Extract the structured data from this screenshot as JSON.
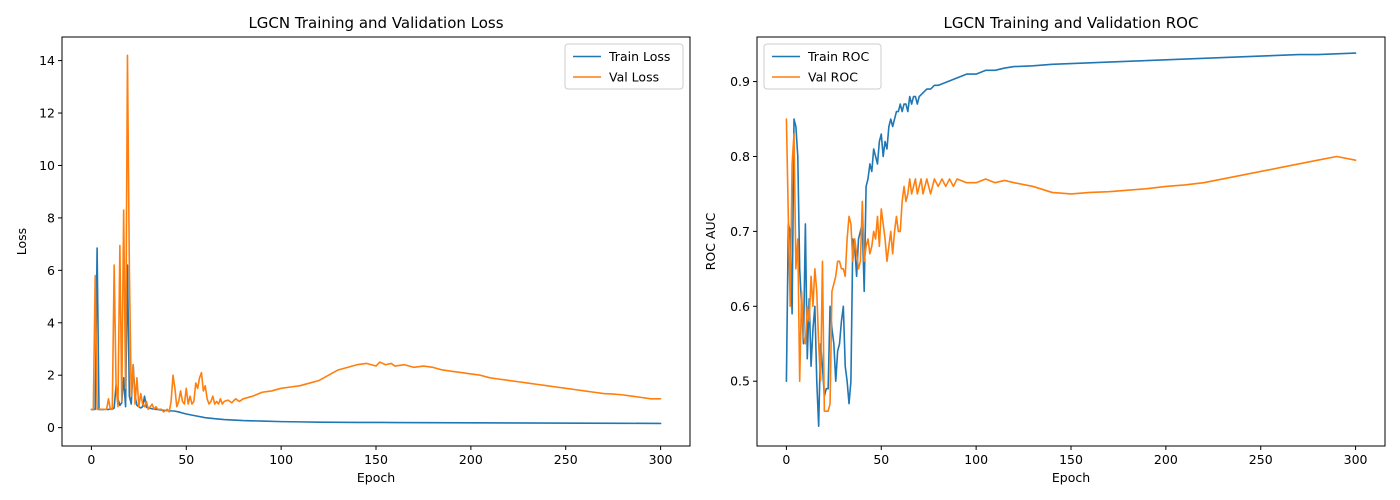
{
  "chart_data": [
    {
      "type": "line",
      "title": "LGCN Training and Validation Loss",
      "xlabel": "Epoch",
      "ylabel": "Loss",
      "xlim": [
        -15.5,
        315.5
      ],
      "ylim": [
        -0.7,
        14.9
      ],
      "xticks": [
        0,
        50,
        100,
        150,
        200,
        250,
        300
      ],
      "yticks": [
        0,
        2,
        4,
        6,
        8,
        10,
        12,
        14
      ],
      "legend_position": "upper right",
      "grid": false,
      "series": [
        {
          "name": "Train Loss",
          "color": "#1f77b4",
          "x": [
            0,
            1,
            2,
            3,
            4,
            5,
            6,
            7,
            8,
            9,
            10,
            11,
            12,
            13,
            14,
            15,
            16,
            17,
            18,
            19,
            20,
            21,
            22,
            23,
            24,
            25,
            26,
            27,
            28,
            29,
            30,
            32,
            34,
            36,
            38,
            40,
            42,
            44,
            46,
            48,
            50,
            55,
            60,
            65,
            70,
            75,
            80,
            90,
            100,
            110,
            120,
            140,
            160,
            180,
            200,
            220,
            240,
            260,
            280,
            300
          ],
          "y": [
            0.69,
            0.69,
            0.7,
            6.85,
            0.69,
            0.7,
            0.69,
            0.7,
            0.7,
            0.69,
            0.72,
            0.7,
            0.75,
            1.62,
            1.1,
            0.85,
            0.95,
            1.9,
            0.8,
            6.2,
            1.2,
            0.9,
            2.4,
            1.2,
            0.85,
            0.8,
            0.75,
            0.8,
            1.2,
            0.78,
            0.75,
            0.72,
            0.7,
            0.68,
            0.66,
            0.65,
            0.64,
            0.63,
            0.6,
            0.56,
            0.52,
            0.45,
            0.38,
            0.34,
            0.31,
            0.29,
            0.27,
            0.25,
            0.23,
            0.22,
            0.21,
            0.2,
            0.195,
            0.19,
            0.185,
            0.18,
            0.175,
            0.17,
            0.165,
            0.16
          ]
        },
        {
          "name": "Val Loss",
          "color": "#ff7f0e",
          "x": [
            0,
            1,
            2,
            3,
            4,
            5,
            6,
            7,
            8,
            9,
            10,
            11,
            12,
            13,
            14,
            15,
            16,
            17,
            18,
            19,
            20,
            21,
            22,
            23,
            24,
            25,
            26,
            27,
            28,
            29,
            30,
            31,
            32,
            33,
            34,
            35,
            36,
            37,
            38,
            39,
            40,
            41,
            42,
            43,
            44,
            45,
            46,
            47,
            48,
            49,
            50,
            51,
            52,
            53,
            54,
            55,
            56,
            57,
            58,
            59,
            60,
            61,
            62,
            63,
            64,
            65,
            66,
            67,
            68,
            69,
            70,
            72,
            74,
            76,
            78,
            80,
            85,
            90,
            95,
            100,
            105,
            110,
            115,
            120,
            125,
            130,
            135,
            140,
            145,
            150,
            152,
            155,
            158,
            160,
            165,
            170,
            175,
            180,
            185,
            190,
            195,
            200,
            205,
            210,
            215,
            220,
            225,
            230,
            235,
            240,
            245,
            250,
            255,
            260,
            265,
            270,
            275,
            280,
            285,
            290,
            295,
            300
          ],
          "y": [
            0.7,
            0.7,
            5.8,
            0.7,
            0.7,
            0.7,
            0.7,
            0.7,
            0.7,
            1.1,
            0.7,
            0.7,
            6.2,
            1.6,
            0.8,
            6.95,
            1.0,
            8.3,
            1.5,
            14.2,
            6.1,
            1.2,
            2.4,
            0.9,
            1.9,
            0.8,
            1.3,
            0.9,
            0.8,
            1.0,
            0.7,
            0.8,
            0.9,
            0.7,
            0.8,
            0.7,
            0.7,
            0.7,
            0.6,
            0.65,
            0.7,
            0.6,
            1.0,
            2.0,
            1.5,
            0.8,
            1.0,
            1.4,
            1.0,
            0.9,
            1.5,
            0.9,
            1.2,
            0.9,
            1.0,
            1.7,
            1.5,
            1.9,
            2.1,
            1.4,
            1.6,
            1.1,
            0.9,
            1.0,
            1.2,
            0.9,
            1.0,
            0.9,
            1.1,
            0.9,
            1.0,
            1.05,
            0.95,
            1.1,
            1.0,
            1.1,
            1.2,
            1.35,
            1.4,
            1.5,
            1.55,
            1.6,
            1.7,
            1.8,
            2.0,
            2.2,
            2.3,
            2.4,
            2.45,
            2.35,
            2.5,
            2.4,
            2.45,
            2.35,
            2.4,
            2.3,
            2.35,
            2.3,
            2.2,
            2.15,
            2.1,
            2.05,
            2.0,
            1.9,
            1.85,
            1.8,
            1.75,
            1.7,
            1.65,
            1.6,
            1.55,
            1.5,
            1.45,
            1.4,
            1.35,
            1.3,
            1.28,
            1.25,
            1.2,
            1.15,
            1.1,
            1.1
          ]
        }
      ]
    },
    {
      "type": "line",
      "title": "LGCN Training and Validation ROC",
      "xlabel": "Epoch",
      "ylabel": "ROC AUC",
      "xlim": [
        -15.5,
        315.5
      ],
      "ylim": [
        0.4135,
        0.9595
      ],
      "xticks": [
        0,
        50,
        100,
        150,
        200,
        250,
        300
      ],
      "yticks": [
        0.5,
        0.6,
        0.7,
        0.8,
        0.9
      ],
      "legend_position": "upper left",
      "grid": false,
      "series": [
        {
          "name": "Train ROC",
          "color": "#1f77b4",
          "x": [
            0,
            1,
            2,
            3,
            4,
            5,
            6,
            7,
            8,
            9,
            10,
            11,
            12,
            13,
            14,
            15,
            16,
            17,
            18,
            19,
            20,
            21,
            22,
            23,
            24,
            25,
            26,
            27,
            28,
            29,
            30,
            31,
            32,
            33,
            34,
            35,
            36,
            37,
            38,
            39,
            40,
            41,
            42,
            43,
            44,
            45,
            46,
            47,
            48,
            49,
            50,
            51,
            52,
            53,
            54,
            55,
            56,
            57,
            58,
            59,
            60,
            61,
            62,
            63,
            64,
            65,
            66,
            67,
            68,
            69,
            70,
            72,
            74,
            76,
            78,
            80,
            85,
            90,
            95,
            100,
            105,
            110,
            115,
            120,
            130,
            140,
            150,
            160,
            170,
            180,
            190,
            200,
            210,
            220,
            230,
            240,
            250,
            260,
            270,
            280,
            290,
            300
          ],
          "y": [
            0.5,
            0.71,
            0.7,
            0.59,
            0.85,
            0.84,
            0.8,
            0.65,
            0.6,
            0.55,
            0.71,
            0.53,
            0.61,
            0.52,
            0.57,
            0.6,
            0.5,
            0.44,
            0.55,
            0.52,
            0.48,
            0.49,
            0.49,
            0.6,
            0.57,
            0.55,
            0.5,
            0.54,
            0.55,
            0.58,
            0.6,
            0.52,
            0.5,
            0.47,
            0.5,
            0.69,
            0.68,
            0.64,
            0.69,
            0.7,
            0.71,
            0.62,
            0.76,
            0.77,
            0.79,
            0.78,
            0.81,
            0.8,
            0.79,
            0.82,
            0.83,
            0.8,
            0.82,
            0.81,
            0.84,
            0.85,
            0.84,
            0.85,
            0.86,
            0.86,
            0.87,
            0.86,
            0.87,
            0.87,
            0.86,
            0.88,
            0.87,
            0.88,
            0.88,
            0.87,
            0.88,
            0.885,
            0.89,
            0.89,
            0.895,
            0.895,
            0.9,
            0.905,
            0.91,
            0.91,
            0.915,
            0.915,
            0.918,
            0.92,
            0.921,
            0.923,
            0.924,
            0.925,
            0.926,
            0.927,
            0.928,
            0.929,
            0.93,
            0.931,
            0.932,
            0.933,
            0.934,
            0.935,
            0.936,
            0.936,
            0.937,
            0.938
          ]
        },
        {
          "name": "Val ROC",
          "color": "#ff7f0e",
          "x": [
            0,
            1,
            2,
            3,
            4,
            5,
            6,
            7,
            8,
            9,
            10,
            11,
            12,
            13,
            14,
            15,
            16,
            17,
            18,
            19,
            20,
            21,
            22,
            23,
            24,
            25,
            26,
            27,
            28,
            29,
            30,
            31,
            32,
            33,
            34,
            35,
            36,
            37,
            38,
            39,
            40,
            41,
            42,
            43,
            44,
            45,
            46,
            47,
            48,
            49,
            50,
            51,
            52,
            53,
            54,
            55,
            56,
            57,
            58,
            59,
            60,
            61,
            62,
            63,
            64,
            65,
            66,
            67,
            68,
            69,
            70,
            71,
            72,
            73,
            74,
            75,
            76,
            77,
            78,
            80,
            82,
            84,
            86,
            88,
            90,
            95,
            100,
            105,
            110,
            115,
            120,
            130,
            140,
            150,
            160,
            170,
            180,
            190,
            200,
            210,
            220,
            230,
            240,
            250,
            260,
            270,
            280,
            290,
            300
          ],
          "y": [
            0.85,
            0.72,
            0.6,
            0.79,
            0.83,
            0.65,
            0.69,
            0.5,
            0.62,
            0.56,
            0.55,
            0.6,
            0.58,
            0.64,
            0.6,
            0.65,
            0.62,
            0.55,
            0.5,
            0.66,
            0.46,
            0.46,
            0.46,
            0.47,
            0.62,
            0.63,
            0.64,
            0.66,
            0.66,
            0.65,
            0.65,
            0.64,
            0.69,
            0.72,
            0.71,
            0.66,
            0.69,
            0.67,
            0.65,
            0.66,
            0.74,
            0.66,
            0.68,
            0.69,
            0.67,
            0.68,
            0.7,
            0.69,
            0.72,
            0.68,
            0.73,
            0.71,
            0.69,
            0.66,
            0.68,
            0.7,
            0.67,
            0.7,
            0.72,
            0.7,
            0.7,
            0.74,
            0.76,
            0.74,
            0.75,
            0.77,
            0.75,
            0.76,
            0.77,
            0.75,
            0.76,
            0.77,
            0.75,
            0.76,
            0.77,
            0.76,
            0.75,
            0.76,
            0.77,
            0.76,
            0.77,
            0.76,
            0.77,
            0.76,
            0.77,
            0.765,
            0.765,
            0.77,
            0.765,
            0.768,
            0.765,
            0.76,
            0.752,
            0.75,
            0.752,
            0.753,
            0.755,
            0.757,
            0.76,
            0.762,
            0.765,
            0.77,
            0.775,
            0.78,
            0.785,
            0.79,
            0.795,
            0.8,
            0.795
          ]
        }
      ]
    }
  ]
}
